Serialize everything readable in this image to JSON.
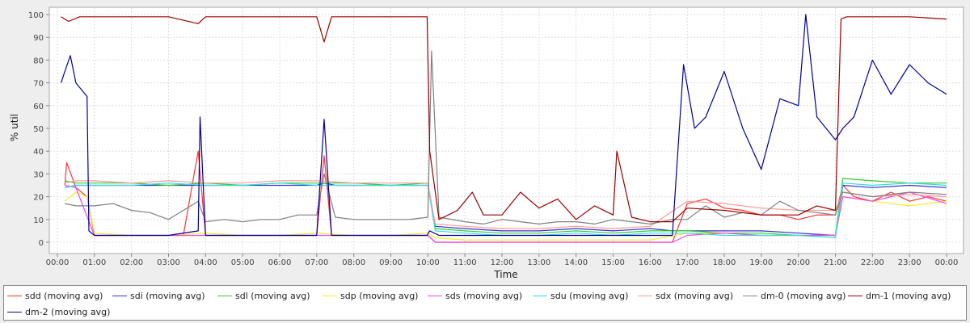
{
  "chart_data": {
    "type": "line",
    "xlabel": "Time",
    "ylabel": "% util",
    "ylim": [
      0,
      100
    ],
    "yticks": [
      0,
      10,
      20,
      30,
      40,
      50,
      60,
      70,
      80,
      90,
      100
    ],
    "xlim": [
      0,
      24
    ],
    "xticks": [
      "00:00",
      "01:00",
      "02:00",
      "03:00",
      "04:00",
      "05:00",
      "06:00",
      "07:00",
      "08:00",
      "09:00",
      "10:00",
      "11:00",
      "12:00",
      "13:00",
      "14:00",
      "15:00",
      "16:00",
      "17:00",
      "18:00",
      "19:00",
      "20:00",
      "21:00",
      "22:00",
      "23:00",
      "00:00"
    ],
    "grid": true,
    "legend_position": "bottom",
    "series": [
      {
        "name": "sdd (moving avg)",
        "color": "#ff3333",
        "x": [
          0.2,
          0.25,
          0.5,
          0.8,
          1.0,
          2.0,
          3.0,
          3.4,
          3.8,
          4.0,
          5.0,
          6.0,
          7.0,
          7.2,
          7.4,
          8.0,
          9.0,
          9.7,
          10.0,
          10.2,
          11.0,
          12.0,
          13.0,
          14.0,
          15.0,
          16.0,
          16.6,
          17.0,
          17.5,
          18.0,
          18.5,
          19.0,
          19.5,
          20.0,
          20.5,
          21.0,
          21.2,
          21.5,
          22.0,
          22.5,
          23.0,
          23.5,
          24.0
        ],
        "y": [
          25,
          35,
          24,
          20,
          3,
          3,
          3,
          3,
          40,
          3,
          3,
          3,
          3,
          38,
          3,
          3,
          3,
          3,
          3,
          0,
          0,
          0,
          0,
          0,
          0,
          0,
          0,
          17,
          19,
          15,
          14,
          12,
          12,
          10,
          12,
          12,
          25,
          20,
          18,
          22,
          18,
          20,
          18
        ]
      },
      {
        "name": "sdi (moving avg)",
        "color": "#3333cc",
        "x": [
          0.2,
          0.5,
          1.0,
          2.0,
          3.0,
          3.8,
          4.0,
          5.0,
          6.0,
          7.0,
          7.2,
          7.5,
          8.0,
          9.0,
          9.8,
          10.0,
          10.2,
          11.0,
          12.0,
          13.0,
          14.0,
          15.0,
          16.0,
          16.6,
          17.0,
          18.0,
          19.0,
          20.0,
          21.0,
          21.2,
          22.0,
          23.0,
          24.0
        ],
        "y": [
          24,
          25,
          25,
          25,
          25,
          25,
          25,
          25,
          25,
          25,
          26,
          25,
          25,
          25,
          25,
          25,
          7,
          6,
          5,
          5,
          6,
          5,
          6,
          5,
          5,
          5,
          5,
          4,
          3,
          25,
          24,
          25,
          24
        ]
      },
      {
        "name": "sdl (moving avg)",
        "color": "#33cc33",
        "x": [
          0.2,
          0.5,
          1.0,
          2.0,
          3.0,
          4.0,
          5.0,
          6.0,
          7.0,
          8.0,
          9.0,
          10.0,
          10.2,
          11.0,
          12.0,
          13.0,
          14.0,
          15.0,
          16.0,
          17.0,
          18.0,
          19.0,
          20.0,
          21.0,
          21.2,
          22.0,
          23.0,
          24.0
        ],
        "y": [
          27,
          26,
          26,
          26,
          25,
          26,
          25,
          26,
          26,
          26,
          25,
          26,
          6,
          5,
          4,
          4,
          5,
          4,
          5,
          5,
          4,
          4,
          3,
          3,
          28,
          27,
          26,
          26
        ]
      },
      {
        "name": "sdp (moving avg)",
        "color": "#eeee22",
        "x": [
          0.2,
          0.5,
          0.8,
          1.0,
          2.0,
          3.0,
          4.0,
          5.0,
          6.0,
          7.0,
          8.0,
          9.0,
          10.0,
          10.2,
          11.0,
          12.0,
          13.0,
          14.0,
          15.0,
          16.0,
          17.0,
          18.0,
          19.0,
          20.0,
          21.0,
          21.2,
          22.0,
          23.0,
          24.0
        ],
        "y": [
          18,
          22,
          20,
          4,
          3,
          3,
          4,
          3,
          3,
          4,
          3,
          3,
          4,
          2,
          1,
          1,
          1,
          1,
          1,
          1,
          4,
          4,
          3,
          3,
          3,
          20,
          18,
          16,
          18
        ]
      },
      {
        "name": "sds (moving avg)",
        "color": "#ee44ee",
        "x": [
          0.2,
          0.5,
          1.0,
          2.0,
          3.0,
          4.0,
          5.0,
          6.0,
          7.0,
          8.0,
          9.0,
          10.0,
          10.2,
          11.0,
          12.0,
          13.0,
          14.0,
          15.0,
          16.0,
          16.6,
          17.0,
          18.0,
          19.0,
          20.0,
          21.0,
          21.2,
          22.0,
          23.0,
          24.0
        ],
        "y": [
          25,
          24,
          3,
          3,
          3,
          3,
          3,
          3,
          3,
          3,
          3,
          3,
          0,
          0,
          0,
          0,
          0,
          0,
          0,
          0,
          3,
          4,
          3,
          3,
          3,
          20,
          18,
          22,
          17
        ]
      },
      {
        "name": "sdu (moving avg)",
        "color": "#33dddd",
        "x": [
          0.2,
          0.5,
          1.0,
          2.0,
          3.0,
          4.0,
          5.0,
          6.0,
          7.0,
          8.0,
          9.0,
          10.0,
          10.2,
          11.0,
          12.0,
          13.0,
          14.0,
          15.0,
          16.0,
          17.0,
          18.0,
          19.0,
          20.0,
          21.0,
          21.2,
          22.0,
          23.0,
          24.0
        ],
        "y": [
          24,
          25,
          25,
          25,
          26,
          25,
          25,
          26,
          25,
          25,
          25,
          25,
          5,
          4,
          3,
          3,
          4,
          3,
          4,
          4,
          3,
          3,
          3,
          2,
          26,
          25,
          26,
          25
        ]
      },
      {
        "name": "sdx (moving avg)",
        "color": "#ff9999",
        "x": [
          0.2,
          0.5,
          1.0,
          2.0,
          3.0,
          4.0,
          5.0,
          6.0,
          7.0,
          8.0,
          9.0,
          10.0,
          10.2,
          11.0,
          12.0,
          13.0,
          14.0,
          15.0,
          16.0,
          17.0,
          18.0,
          19.0,
          20.0,
          21.0,
          21.2,
          22.0,
          23.0,
          24.0
        ],
        "y": [
          26,
          27,
          27,
          26,
          27,
          26,
          26,
          27,
          27,
          26,
          26,
          26,
          8,
          7,
          6,
          6,
          7,
          6,
          7,
          18,
          17,
          15,
          14,
          14,
          22,
          20,
          21,
          20
        ]
      },
      {
        "name": "dm-0 (moving avg)",
        "color": "#808080",
        "x": [
          0.2,
          0.5,
          1.0,
          1.5,
          2.0,
          2.5,
          3.0,
          3.8,
          4.0,
          4.5,
          5.0,
          5.5,
          6.0,
          6.5,
          7.0,
          7.2,
          7.5,
          8.0,
          8.5,
          9.0,
          9.5,
          10.0,
          10.1,
          10.3,
          11.0,
          11.5,
          12.0,
          12.5,
          13.0,
          13.5,
          14.0,
          14.5,
          15.0,
          15.5,
          16.0,
          16.6,
          17.0,
          17.5,
          18.0,
          18.5,
          19.0,
          19.5,
          20.0,
          20.5,
          21.0,
          21.2,
          22.0,
          23.0,
          24.0
        ],
        "y": [
          17,
          16,
          16,
          17,
          14,
          13,
          10,
          18,
          9,
          10,
          9,
          10,
          10,
          12,
          12,
          30,
          11,
          10,
          10,
          10,
          10,
          11,
          84,
          11,
          9,
          8,
          10,
          9,
          8,
          9,
          9,
          8,
          10,
          9,
          8,
          10,
          10,
          16,
          11,
          13,
          12,
          18,
          14,
          13,
          12,
          22,
          20,
          22,
          21
        ]
      },
      {
        "name": "dm-1 (moving avg)",
        "color": "#990000",
        "x": [
          0.1,
          0.3,
          0.6,
          1.0,
          2.0,
          3.0,
          3.8,
          4.0,
          5.0,
          6.0,
          7.0,
          7.2,
          7.4,
          8.0,
          9.0,
          9.98,
          10.05,
          10.3,
          10.8,
          11.2,
          11.5,
          12.0,
          12.5,
          13.0,
          13.5,
          14.0,
          14.5,
          15.0,
          15.1,
          15.5,
          16.0,
          16.6,
          17.0,
          18.0,
          19.0,
          20.0,
          20.5,
          21.0,
          21.15,
          21.3,
          22.0,
          23.0,
          24.0
        ],
        "y": [
          99,
          97,
          99,
          99,
          99,
          99,
          96,
          99,
          99,
          99,
          99,
          88,
          99,
          99,
          99,
          99,
          40,
          10,
          14,
          22,
          12,
          12,
          22,
          15,
          19,
          10,
          16,
          12,
          40,
          11,
          9,
          9,
          15,
          14,
          12,
          12,
          16,
          14,
          98,
          99,
          99,
          99,
          98
        ]
      },
      {
        "name": "dm-2 (moving avg)",
        "color": "#000099",
        "x": [
          0.1,
          0.2,
          0.35,
          0.5,
          0.8,
          0.85,
          1.0,
          2.0,
          3.0,
          3.8,
          3.85,
          4.0,
          5.0,
          6.0,
          7.0,
          7.2,
          7.4,
          8.0,
          9.0,
          9.98,
          10.05,
          10.3,
          11.0,
          12.0,
          13.0,
          14.0,
          15.0,
          16.0,
          16.6,
          16.9,
          17.2,
          17.5,
          18.0,
          18.5,
          19.0,
          19.5,
          20.0,
          20.2,
          20.5,
          21.0,
          21.2,
          21.5,
          22.0,
          22.5,
          23.0,
          23.5,
          24.0
        ],
        "y": [
          70,
          75,
          82,
          70,
          64,
          5,
          3,
          3,
          3,
          5,
          55,
          3,
          3,
          3,
          3,
          54,
          3,
          3,
          3,
          3,
          5,
          3,
          3,
          3,
          3,
          3,
          3,
          3,
          3,
          78,
          50,
          55,
          75,
          50,
          32,
          63,
          60,
          100,
          55,
          45,
          50,
          55,
          80,
          65,
          78,
          70,
          65
        ]
      }
    ]
  }
}
